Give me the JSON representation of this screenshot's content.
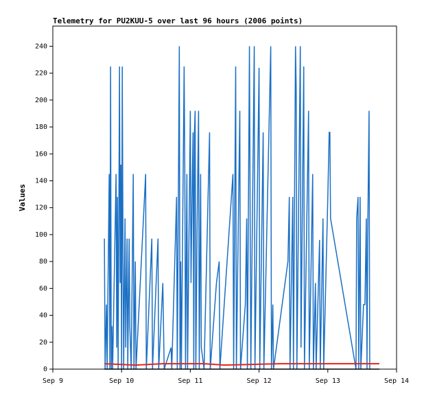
{
  "chart_data": {
    "type": "line",
    "title": "Telemetry for PU2KUU-5 over last 96 hours (2006 points)",
    "y_label": "Values",
    "xlim": [
      9,
      14
    ],
    "xticks": [
      {
        "value": 9,
        "label": "Sep 9"
      },
      {
        "value": 10,
        "label": "Sep 10"
      },
      {
        "value": 11,
        "label": "Sep 11"
      },
      {
        "value": 12,
        "label": "Sep 12"
      },
      {
        "value": 13,
        "label": "Sep 13"
      },
      {
        "value": 14,
        "label": "Sep 14"
      }
    ],
    "ylim": [
      0,
      255
    ],
    "yticks": [
      0,
      20,
      40,
      60,
      80,
      100,
      120,
      140,
      160,
      180,
      200,
      220,
      240
    ],
    "series": [
      {
        "color": "#1a6fc4",
        "x": [
          9.75,
          9.76,
          9.78,
          9.79,
          9.82,
          9.83,
          9.84,
          9.85,
          9.86,
          9.87,
          9.92,
          9.93,
          9.94,
          9.95,
          9.96,
          9.97,
          9.98,
          9.99,
          10.0,
          10.01,
          10.02,
          10.03,
          10.05,
          10.06,
          10.08,
          10.09,
          10.11,
          10.12,
          10.14,
          10.17,
          10.18,
          10.2,
          10.21,
          10.35,
          10.36,
          10.44,
          10.45,
          10.53,
          10.54,
          10.6,
          10.61,
          10.62,
          10.72,
          10.73,
          10.8,
          10.81,
          10.84,
          10.85,
          10.86,
          10.87,
          10.91,
          10.92,
          10.93,
          10.95,
          10.96,
          11.0,
          11.01,
          11.03,
          11.04,
          11.05,
          11.06,
          11.07,
          11.08,
          11.1,
          11.12,
          11.13,
          11.15,
          11.16,
          11.2,
          11.28,
          11.29,
          11.38,
          11.42,
          11.43,
          11.62,
          11.63,
          11.66,
          11.67,
          11.72,
          11.73,
          11.8,
          11.82,
          11.83,
          11.86,
          11.87,
          11.88,
          11.93,
          11.94,
          12.0,
          12.01,
          12.06,
          12.07,
          12.15,
          12.17,
          12.18,
          12.2,
          12.21,
          12.42,
          12.44,
          12.45,
          12.49,
          12.5,
          12.53,
          12.54,
          12.55,
          12.6,
          12.61,
          12.65,
          12.66,
          12.72,
          12.73,
          12.78,
          12.79,
          12.82,
          12.83,
          12.88,
          12.89,
          12.93,
          12.94,
          13.0,
          13.02,
          13.03,
          13.04,
          13.41,
          13.42,
          13.44,
          13.45,
          13.47,
          13.48,
          13.52,
          13.54,
          13.56,
          13.57,
          13.58,
          13.6,
          13.61,
          13.62
        ],
        "values": [
          97,
          0,
          48,
          0,
          145,
          0,
          225,
          0,
          32,
          0,
          145,
          16,
          128,
          0,
          112,
          225,
          64,
          152,
          0,
          225,
          97,
          0,
          112,
          16,
          97,
          0,
          97,
          32,
          0,
          145,
          0,
          80,
          0,
          145,
          0,
          97,
          0,
          97,
          0,
          64,
          32,
          0,
          16,
          0,
          128,
          0,
          240,
          0,
          80,
          0,
          225,
          145,
          0,
          145,
          0,
          192,
          64,
          145,
          176,
          0,
          176,
          192,
          0,
          112,
          192,
          0,
          145,
          16,
          0,
          176,
          0,
          64,
          80,
          0,
          145,
          0,
          225,
          0,
          192,
          0,
          48,
          112,
          0,
          240,
          120,
          0,
          240,
          0,
          224,
          0,
          176,
          0,
          192,
          240,
          0,
          48,
          0,
          80,
          128,
          0,
          128,
          0,
          240,
          208,
          0,
          240,
          16,
          225,
          0,
          192,
          0,
          145,
          0,
          64,
          0,
          96,
          0,
          112,
          0,
          128,
          176,
          176,
          112,
          0,
          112,
          128,
          0,
          128,
          0,
          48,
          48,
          112,
          0,
          97,
          192,
          0,
          0
        ]
      },
      {
        "color": "#000000",
        "x": [
          9.75,
          13.75
        ],
        "values": [
          0,
          0
        ]
      },
      {
        "color": "#e8231b",
        "x": [
          9.75,
          10.2,
          10.6,
          11.2,
          11.5,
          12.3,
          13.0,
          13.75
        ],
        "values": [
          4,
          3,
          4,
          4,
          3,
          4,
          4,
          4
        ]
      }
    ]
  }
}
